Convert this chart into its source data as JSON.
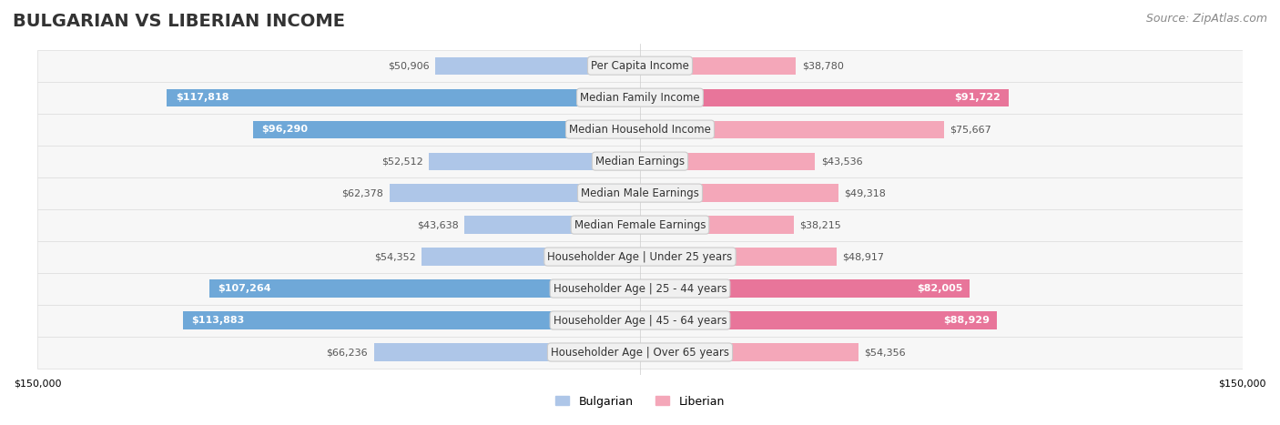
{
  "title": "BULGARIAN VS LIBERIAN INCOME",
  "source": "Source: ZipAtlas.com",
  "categories": [
    "Per Capita Income",
    "Median Family Income",
    "Median Household Income",
    "Median Earnings",
    "Median Male Earnings",
    "Median Female Earnings",
    "Householder Age | Under 25 years",
    "Householder Age | 25 - 44 years",
    "Householder Age | 45 - 64 years",
    "Householder Age | Over 65 years"
  ],
  "bulgarian_values": [
    50906,
    117818,
    96290,
    52512,
    62378,
    43638,
    54352,
    107264,
    113883,
    66236
  ],
  "liberian_values": [
    38780,
    91722,
    75667,
    43536,
    49318,
    38215,
    48917,
    82005,
    88929,
    54356
  ],
  "bulgarian_color": "#aec6e8",
  "bulgarian_color_large": "#6fa8d8",
  "liberian_color": "#f4a7b9",
  "liberian_color_large": "#e8759a",
  "label_bg_color": "#f0f0f0",
  "row_bg_color": "#f7f7f7",
  "row_border_color": "#dddddd",
  "axis_limit": 150000,
  "bar_height": 0.55,
  "large_value_threshold": 80000,
  "title_fontsize": 14,
  "source_fontsize": 9,
  "label_fontsize": 8.5,
  "value_fontsize": 8,
  "axis_label_fontsize": 8,
  "legend_fontsize": 9
}
